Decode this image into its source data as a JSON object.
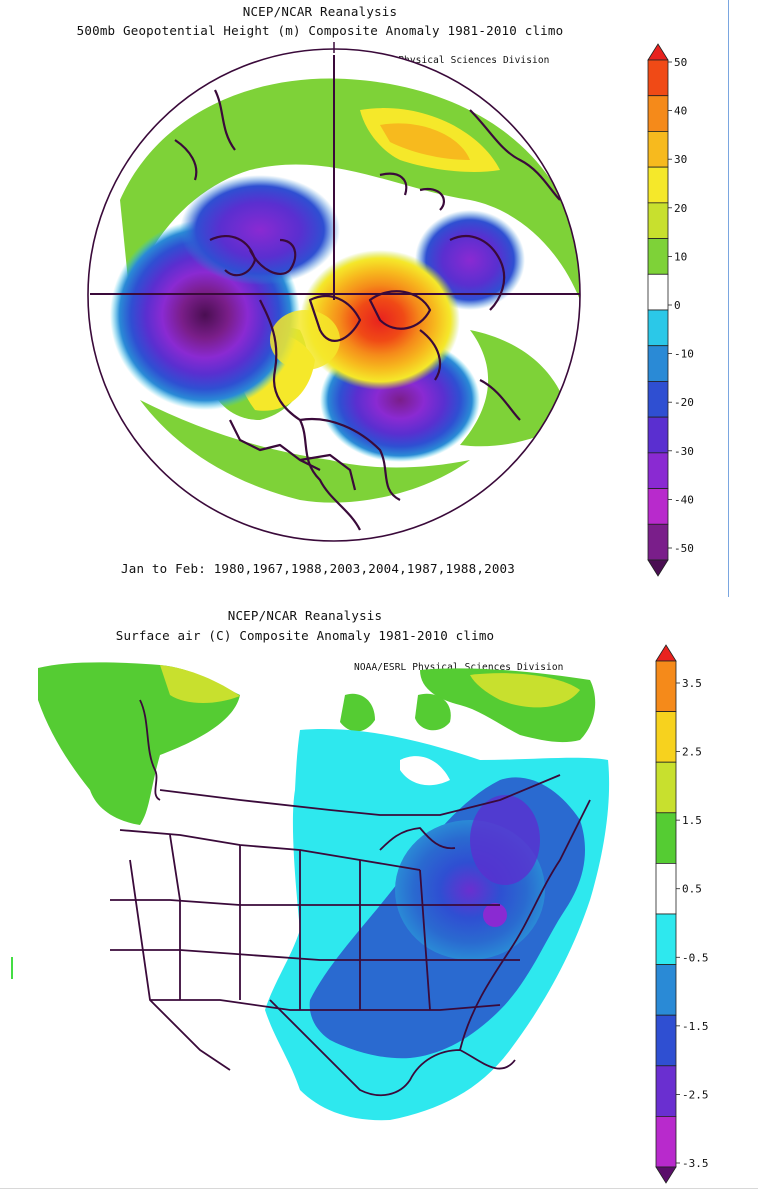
{
  "panel_top": {
    "title_line1": "NCEP/NCAR Reanalysis",
    "title_line2": "500mb Geopotential Height (m) Composite Anomaly 1981-2010 climo",
    "credit": "NOAA/ESRL Physical Sciences Division",
    "caption": "Jan to Feb: 1980,1967,1988,2003,2004,1987,1988,2003",
    "colorbar": {
      "labels": [
        "50",
        "40",
        "30",
        "20",
        "10",
        "0",
        "-10",
        "-20",
        "-30",
        "-40",
        "-50"
      ],
      "colors": [
        "#e8221e",
        "#f04a16",
        "#f58a1a",
        "#f7ba1e",
        "#f5e82a",
        "#c8e02e",
        "#7ed238",
        "#ffffff",
        "#2bc8e8",
        "#2a8ad6",
        "#2f4fd2",
        "#5a2fd0",
        "#8a2ad2",
        "#b82acc",
        "#7a1e8a",
        "#4a0e52"
      ]
    }
  },
  "panel_bottom": {
    "title_line1": "NCEP/NCAR Reanalysis",
    "title_line2": "Surface air (C) Composite Anomaly 1981-2010 climo",
    "credit": "NOAA/ESRL Physical Sciences Division",
    "colorbar": {
      "labels": [
        "3.5",
        "2.5",
        "1.5",
        "0.5",
        "-0.5",
        "-1.5",
        "-2.5",
        "-3.5"
      ],
      "colors": [
        "#e8221e",
        "#f58a1a",
        "#f7d21e",
        "#c8e02e",
        "#55cc33",
        "#ffffff",
        "#2ee8ee",
        "#2a8ad6",
        "#2f4fd2",
        "#6a2fd0",
        "#b82acc",
        "#5a0e6a"
      ]
    }
  }
}
